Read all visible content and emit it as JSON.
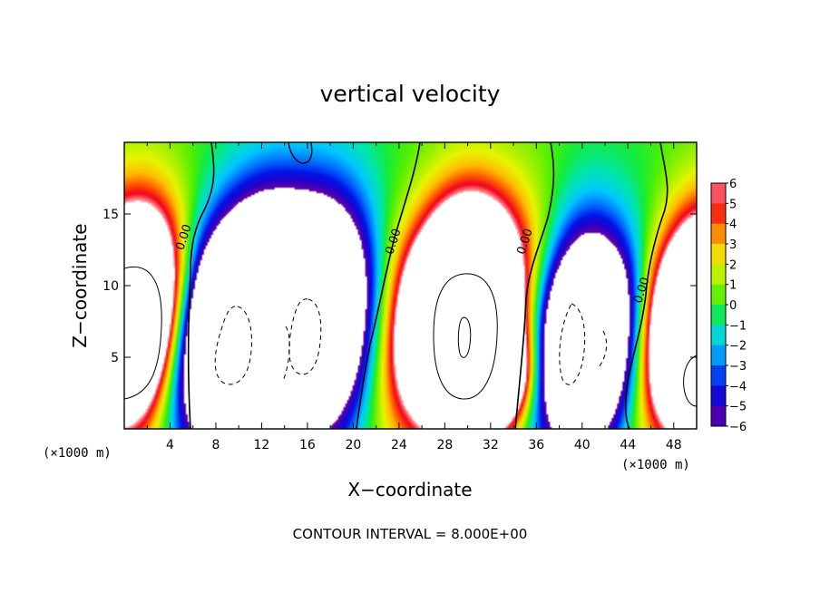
{
  "chart_data": {
    "type": "heatmap",
    "title": "vertical velocity",
    "xlabel": "X−coordinate",
    "ylabel": "Z−coordinate",
    "x_unit_left": "(×1000 m)",
    "x_unit_right": "(×1000 m)",
    "footer": "CONTOUR INTERVAL = 8.000E+00",
    "xlim": [
      0,
      50
    ],
    "ylim": [
      0,
      20
    ],
    "x_ticks": [
      4,
      8,
      12,
      16,
      20,
      24,
      28,
      32,
      36,
      40,
      44,
      48
    ],
    "y_ticks": [
      5,
      10,
      15
    ],
    "colorbar": {
      "min": -6,
      "max": 6,
      "labels": [
        "6",
        "5",
        "4",
        "3",
        "2",
        "1",
        "0",
        "−1",
        "−2",
        "−3",
        "−4",
        "−5",
        "−6"
      ],
      "values": [
        6,
        5,
        4,
        3,
        2,
        1,
        0,
        -1,
        -2,
        -3,
        -4,
        -5,
        -6
      ]
    },
    "contour_labels": [
      {
        "text": "0.00",
        "x": 5.5,
        "z": 13.3
      },
      {
        "text": "0.00",
        "x": 23.8,
        "z": 13.0
      },
      {
        "text": "0.00",
        "x": 35.3,
        "z": 13.0
      },
      {
        "text": "0.00",
        "x": 45.5,
        "z": 9.6
      }
    ],
    "features": [
      {
        "kind": "updraft",
        "x": 0.5,
        "z": 7.8,
        "strength": 20
      },
      {
        "kind": "downdraft",
        "x": 9.5,
        "z": 7.0,
        "strength": 20
      },
      {
        "kind": "downdraft",
        "x": 15.5,
        "z": 7.5,
        "strength": 20
      },
      {
        "kind": "updraft",
        "x": 29.5,
        "z": 7.8,
        "strength": 26
      },
      {
        "kind": "updraft",
        "x": 33.3,
        "z": 3.5,
        "strength": 8
      },
      {
        "kind": "downdraft",
        "x": 40.5,
        "z": 6.2,
        "strength": 18
      },
      {
        "kind": "updraft",
        "x": 49.8,
        "z": 7.0,
        "strength": 20
      }
    ]
  }
}
